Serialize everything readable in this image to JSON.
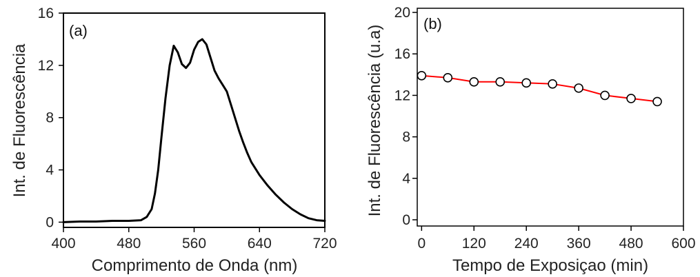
{
  "chart_data": [
    {
      "type": "line",
      "panel_label": "(a)",
      "xlabel": "Comprimento de Onda (nm)",
      "ylabel": "Int. de Fluorescência",
      "xlim": [
        400,
        720
      ],
      "ylim": [
        -0.4,
        16
      ],
      "xticks": [
        400,
        480,
        560,
        640,
        720
      ],
      "yticks": [
        0,
        4,
        8,
        12,
        16
      ],
      "grid": false,
      "series": [
        {
          "color": "#000000",
          "x": [
            400,
            420,
            440,
            460,
            480,
            495,
            502,
            508,
            512,
            516,
            520,
            525,
            530,
            535,
            540,
            545,
            550,
            555,
            560,
            565,
            570,
            575,
            580,
            585,
            590,
            595,
            600,
            605,
            610,
            615,
            620,
            625,
            630,
            640,
            650,
            660,
            670,
            680,
            690,
            700,
            710,
            720
          ],
          "y": [
            0.0,
            0.05,
            0.05,
            0.1,
            0.1,
            0.15,
            0.4,
            1.0,
            2.2,
            4.0,
            6.5,
            9.5,
            12.0,
            13.5,
            13.0,
            12.1,
            11.8,
            12.2,
            13.2,
            13.8,
            14.0,
            13.6,
            12.6,
            11.6,
            11.0,
            10.5,
            10.0,
            9.0,
            8.0,
            7.0,
            6.1,
            5.3,
            4.6,
            3.6,
            2.8,
            2.1,
            1.5,
            1.0,
            0.6,
            0.3,
            0.15,
            0.1
          ]
        }
      ]
    },
    {
      "type": "line",
      "panel_label": "(b)",
      "xlabel": "Tempo de Exposiçao (min)",
      "ylabel": "Int. de Fluorescência (u.a)",
      "xlim": [
        -10,
        600
      ],
      "ylim": [
        -0.6,
        20.4
      ],
      "xticks": [
        0,
        120,
        240,
        360,
        480,
        600
      ],
      "yticks": [
        0,
        4,
        8,
        12,
        16,
        20
      ],
      "grid": false,
      "series": [
        {
          "color": "#ff0000",
          "marker": "open-circle",
          "x": [
            0,
            60,
            120,
            180,
            240,
            300,
            360,
            420,
            480,
            540
          ],
          "y": [
            13.9,
            13.7,
            13.3,
            13.3,
            13.2,
            13.1,
            12.7,
            12.0,
            11.7,
            11.4
          ]
        }
      ]
    }
  ]
}
